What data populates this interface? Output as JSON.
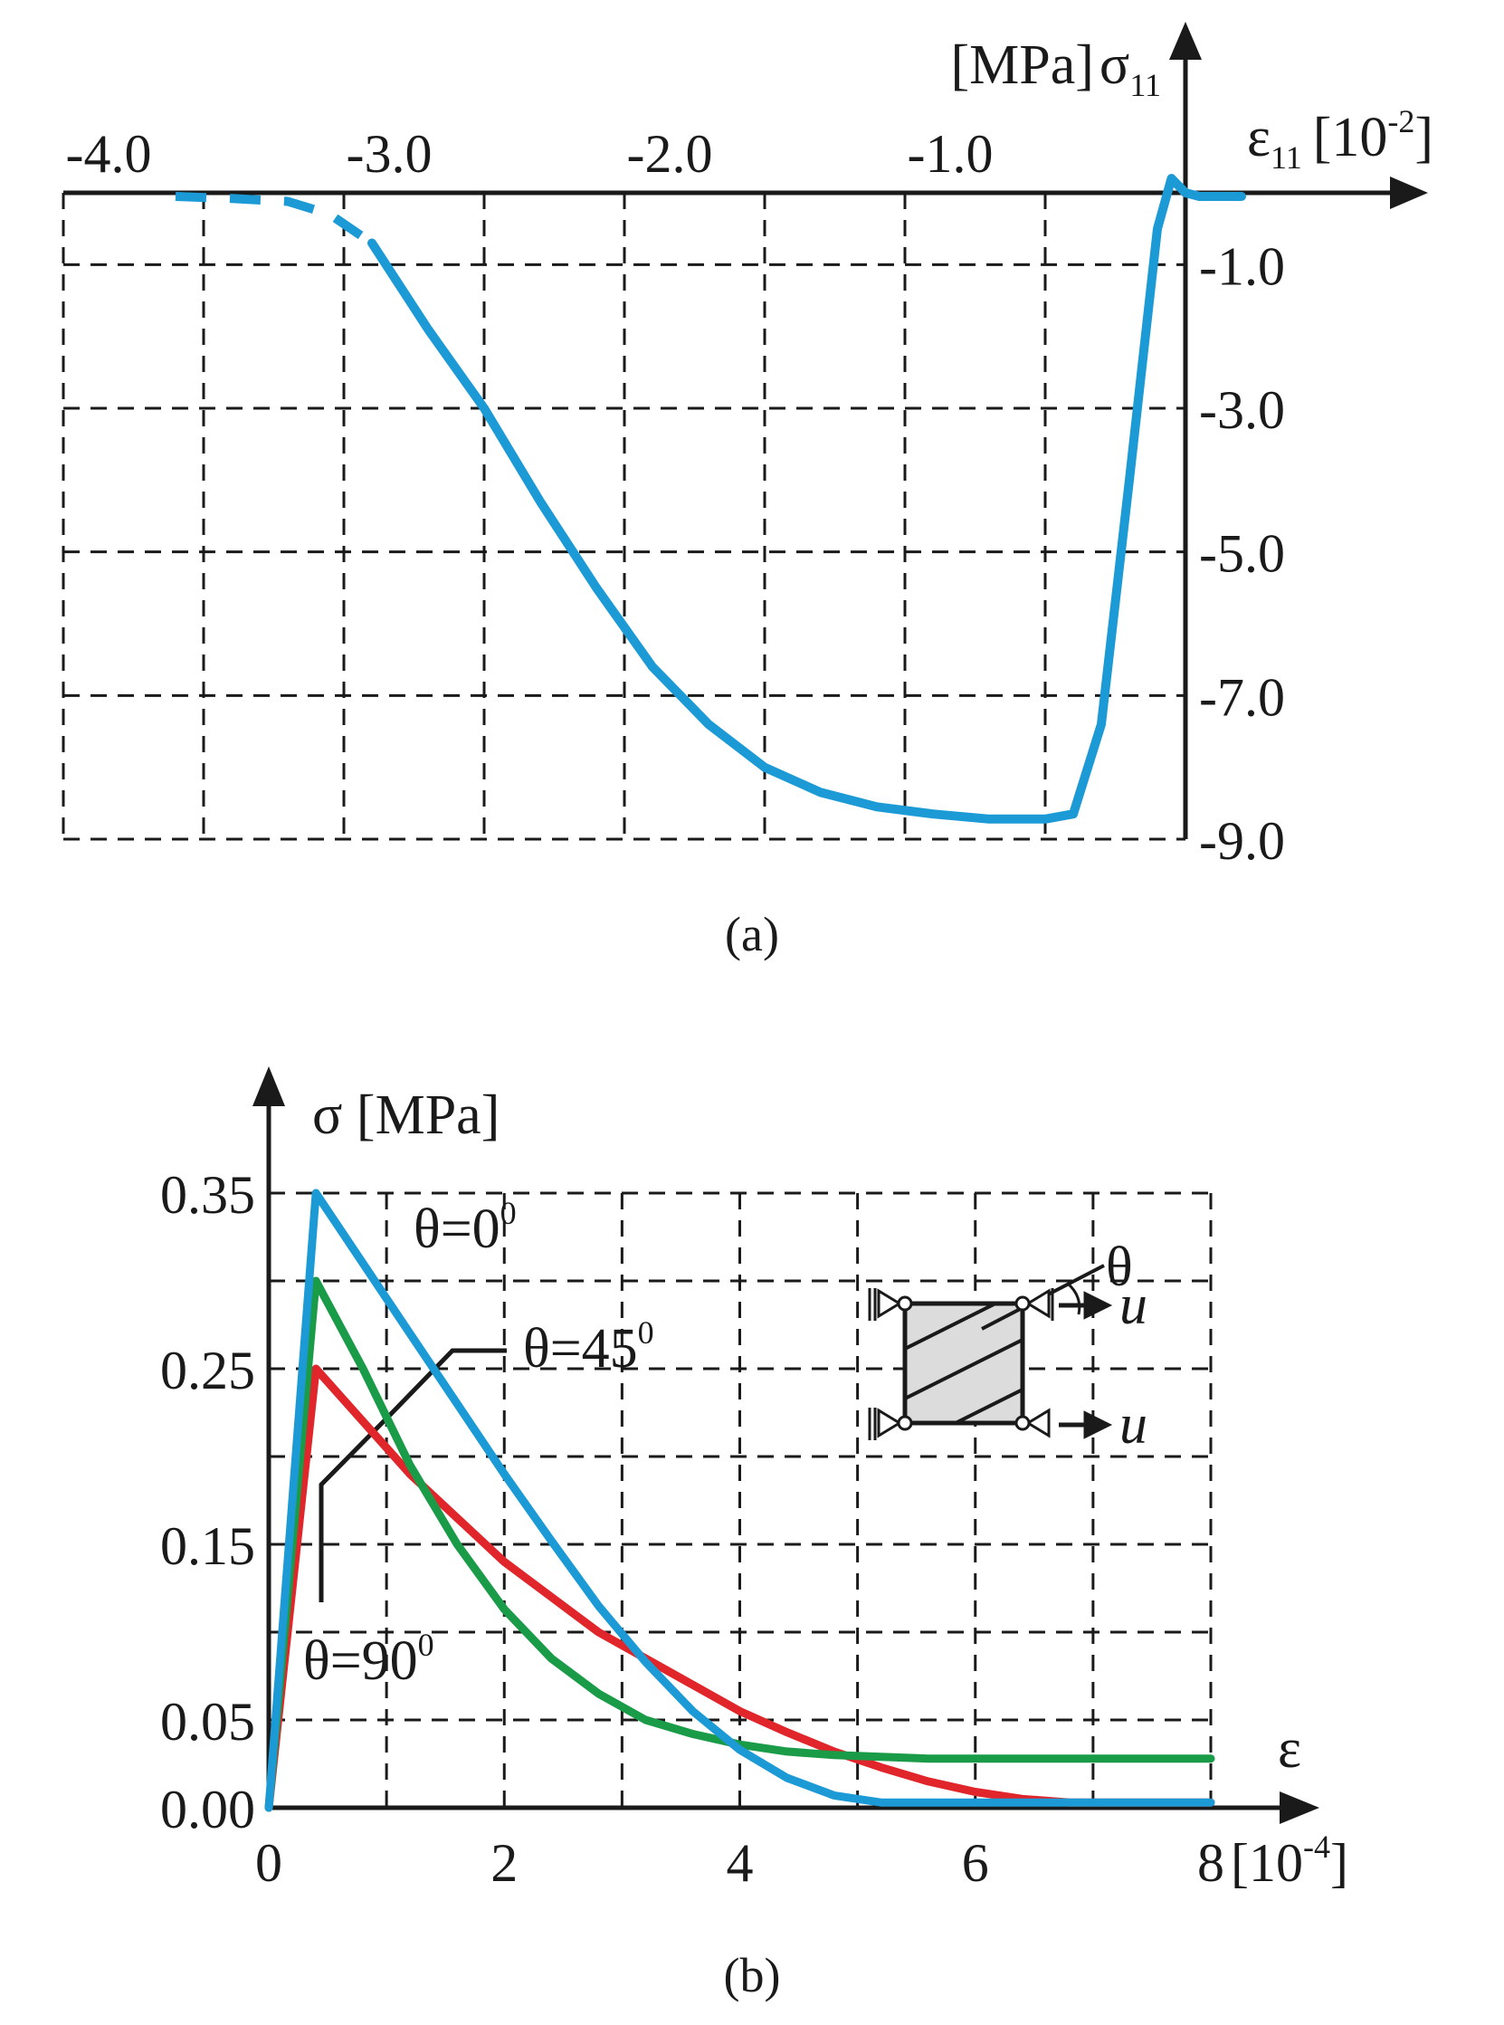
{
  "chart_data": [
    {
      "type": "line",
      "panel": "a",
      "caption": "(a)",
      "xlabel": "ε",
      "xlabel_sub": "11",
      "xunit": "[10",
      "xunit_exp": "-2",
      "xunit_close": "]",
      "ylabel_unit": "[MPa]",
      "ylabel": "σ",
      "ylabel_sub": "11",
      "xlim": [
        -4.0,
        0.0
      ],
      "ylim": [
        -9.0,
        0.0
      ],
      "x_tick_labels": [
        "-4.0",
        "-3.0",
        "-2.0",
        "-1.0"
      ],
      "x_ticks": [
        -4.0,
        -3.0,
        -2.0,
        -1.0
      ],
      "y_tick_labels": [
        "-1.0",
        "-3.0",
        "-5.0",
        "-7.0",
        "-9.0"
      ],
      "y_ticks": [
        -1.0,
        -3.0,
        -5.0,
        -7.0,
        -9.0
      ],
      "grid": true,
      "series": [
        {
          "color": "#1c9ad6",
          "style": "dashed",
          "x": [
            -3.6,
            -3.4,
            -3.2,
            -3.05,
            -2.9
          ],
          "y": [
            -0.05,
            -0.08,
            -0.12,
            -0.3,
            -0.7
          ]
        },
        {
          "color": "#1c9ad6",
          "style": "solid",
          "x": [
            -2.9,
            -2.7,
            -2.5,
            -2.3,
            -2.1,
            -1.9,
            -1.7,
            -1.5,
            -1.3,
            -1.1,
            -0.9,
            -0.7,
            -0.5,
            -0.4,
            -0.3,
            -0.2,
            -0.1,
            -0.05,
            0.0,
            0.05,
            0.1,
            0.2
          ],
          "y": [
            -0.7,
            -1.9,
            -3.0,
            -4.3,
            -5.5,
            -6.6,
            -7.4,
            -8.0,
            -8.35,
            -8.55,
            -8.65,
            -8.72,
            -8.72,
            -8.65,
            -7.4,
            -4.0,
            -0.5,
            0.2,
            0.0,
            -0.05,
            -0.05,
            -0.05
          ]
        }
      ]
    },
    {
      "type": "line",
      "panel": "b",
      "caption": "(b)",
      "xlabel": "ε",
      "xunit": "[10",
      "xunit_exp": "-4",
      "xunit_close": "]",
      "ylabel": "σ [MPa]",
      "xlim": [
        0,
        8
      ],
      "ylim": [
        0,
        0.35
      ],
      "x_tick_labels": [
        "0",
        "2",
        "4",
        "6",
        "8"
      ],
      "x_ticks": [
        0,
        2,
        4,
        6,
        8
      ],
      "y_tick_labels": [
        "0.00",
        "0.05",
        "0.15",
        "0.25",
        "0.35"
      ],
      "y_ticks": [
        0.0,
        0.05,
        0.15,
        0.25,
        0.35
      ],
      "grid": true,
      "annotations": [
        {
          "text": "θ=0",
          "sup": "0"
        },
        {
          "text": "θ=45",
          "sup": "0"
        },
        {
          "text": "θ=90",
          "sup": "0"
        }
      ],
      "inset": {
        "angle_label": "θ",
        "load_label": "u"
      },
      "series": [
        {
          "color": "#e0262a",
          "x": [
            0,
            0.4,
            0.8,
            1.2,
            1.6,
            2.0,
            2.4,
            2.8,
            3.2,
            3.6,
            4.0,
            4.4,
            4.8,
            5.2,
            5.6,
            6.0,
            6.4,
            6.8,
            7.2,
            7.6,
            8.0
          ],
          "y": [
            0,
            0.25,
            0.22,
            0.19,
            0.165,
            0.14,
            0.12,
            0.1,
            0.085,
            0.07,
            0.055,
            0.043,
            0.032,
            0.023,
            0.015,
            0.009,
            0.005,
            0.003,
            0.003,
            0.003,
            0.003
          ]
        },
        {
          "color": "#1a9b48",
          "x": [
            0,
            0.4,
            0.8,
            1.2,
            1.6,
            2.0,
            2.4,
            2.8,
            3.2,
            3.6,
            4.0,
            4.4,
            4.8,
            5.2,
            5.6,
            6.0,
            6.4,
            6.8,
            7.2,
            7.6,
            8.0
          ],
          "y": [
            0,
            0.3,
            0.25,
            0.195,
            0.15,
            0.113,
            0.085,
            0.065,
            0.05,
            0.042,
            0.036,
            0.032,
            0.03,
            0.029,
            0.028,
            0.028,
            0.028,
            0.028,
            0.028,
            0.028,
            0.028
          ]
        },
        {
          "color": "#1c9ad6",
          "x": [
            0,
            0.4,
            0.8,
            1.2,
            1.6,
            2.0,
            2.4,
            2.8,
            3.2,
            3.6,
            4.0,
            4.4,
            4.8,
            5.2,
            5.6,
            6.0,
            6.4,
            6.8,
            7.2,
            7.6,
            8.0
          ],
          "y": [
            0,
            0.35,
            0.31,
            0.27,
            0.23,
            0.19,
            0.152,
            0.115,
            0.083,
            0.055,
            0.033,
            0.017,
            0.007,
            0.003,
            0.003,
            0.003,
            0.003,
            0.003,
            0.003,
            0.003,
            0.003
          ]
        }
      ]
    }
  ]
}
